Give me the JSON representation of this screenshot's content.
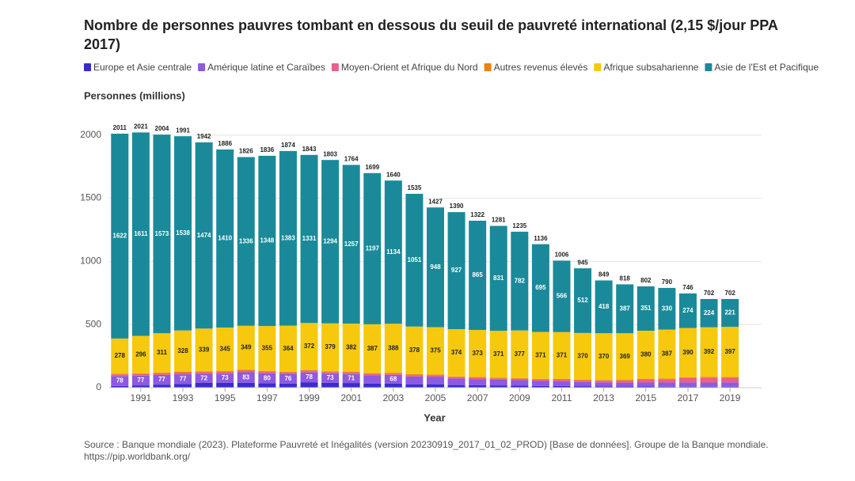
{
  "chart_data": {
    "type": "stacked_bar",
    "title": [
      "Nombre de personnes pauvres tombant en dessous du seuil de pauvreté international (2,15 $/jour PPA",
      "2017)"
    ],
    "y_label": "Personnes (millions)",
    "x_label": "Year",
    "source": [
      "Source : Banque mondiale (2023). Plateforme Pauvreté et Inégalités (version 20230919_2017_01_02_PROD) [Base de données]. Groupe de la Banque mondiale.",
      "https://pip.worldbank.org/"
    ],
    "x": [
      1990,
      1991,
      1992,
      1993,
      1994,
      1995,
      1996,
      1997,
      1998,
      1999,
      2000,
      2001,
      2002,
      2003,
      2004,
      2005,
      2006,
      2007,
      2008,
      2009,
      2010,
      2011,
      2012,
      2013,
      2014,
      2015,
      2016,
      2017,
      2018,
      2019
    ],
    "xlim": [
      1989.5,
      2020.5
    ],
    "xticks": [
      1991,
      1993,
      1995,
      1997,
      1999,
      2001,
      2003,
      2005,
      2007,
      2009,
      2011,
      2013,
      2015,
      2017,
      2019
    ],
    "ylim": [
      0,
      2130
    ],
    "yticks": [
      0,
      500,
      1000,
      1500,
      2000
    ],
    "grid": true,
    "series": [
      {
        "name": "Europe et Asie centrale",
        "color": "#3a2bd1",
        "values": [
          14,
          18,
          24,
          29,
          38,
          39,
          39,
          34,
          33,
          43,
          39,
          37,
          32,
          33,
          27,
          27,
          21,
          20,
          18,
          16,
          14,
          14,
          12,
          10,
          9,
          9,
          8,
          8,
          7,
          7
        ]
      },
      {
        "name": "Amérique latine et Caraïbes",
        "color": "#8e5ae0",
        "values": [
          78,
          77,
          77,
          77,
          72,
          73,
          83,
          80,
          76,
          78,
          73,
          71,
          66,
          68,
          62,
          60,
          52,
          48,
          45,
          44,
          40,
          38,
          33,
          32,
          31,
          32,
          33,
          34,
          34,
          35
        ]
      },
      {
        "name": "Moyen-Orient et Afrique du Nord",
        "color": "#ec5f86",
        "values": [
          13,
          13,
          13,
          13,
          13,
          13,
          13,
          13,
          12,
          13,
          12,
          11,
          11,
          11,
          11,
          11,
          10,
          10,
          10,
          10,
          10,
          11,
          12,
          13,
          16,
          24,
          26,
          34,
          39,
          36
        ]
      },
      {
        "name": "Autres revenus élevés",
        "color": "#e8840f",
        "values": [
          6,
          6,
          6,
          6,
          6,
          6,
          6,
          6,
          6,
          6,
          6,
          6,
          6,
          6,
          6,
          6,
          6,
          6,
          6,
          6,
          6,
          6,
          6,
          6,
          6,
          6,
          6,
          6,
          6,
          6
        ]
      },
      {
        "name": "Afrique subsaharienne",
        "color": "#f6c90e",
        "values": [
          278,
          296,
          311,
          328,
          339,
          345,
          349,
          355,
          364,
          372,
          379,
          382,
          387,
          388,
          378,
          375,
          374,
          373,
          371,
          377,
          371,
          371,
          370,
          370,
          369,
          380,
          387,
          390,
          392,
          397
        ]
      },
      {
        "name": "Asie de l'Est et Pacifique",
        "color": "#1a8a9a",
        "values": [
          1622,
          1611,
          1573,
          1538,
          1474,
          1410,
          1336,
          1348,
          1383,
          1331,
          1294,
          1257,
          1197,
          1134,
          1051,
          948,
          927,
          865,
          831,
          782,
          695,
          566,
          512,
          418,
          387,
          351,
          330,
          274,
          224,
          221
        ]
      }
    ],
    "totals": [
      2011,
      2021,
      2004,
      1991,
      1942,
      1886,
      1826,
      1836,
      1874,
      1843,
      1803,
      1764,
      1699,
      1640,
      1535,
      1427,
      1390,
      1322,
      1281,
      1235,
      1136,
      1006,
      945,
      849,
      818,
      802,
      790,
      746,
      702,
      702
    ]
  }
}
